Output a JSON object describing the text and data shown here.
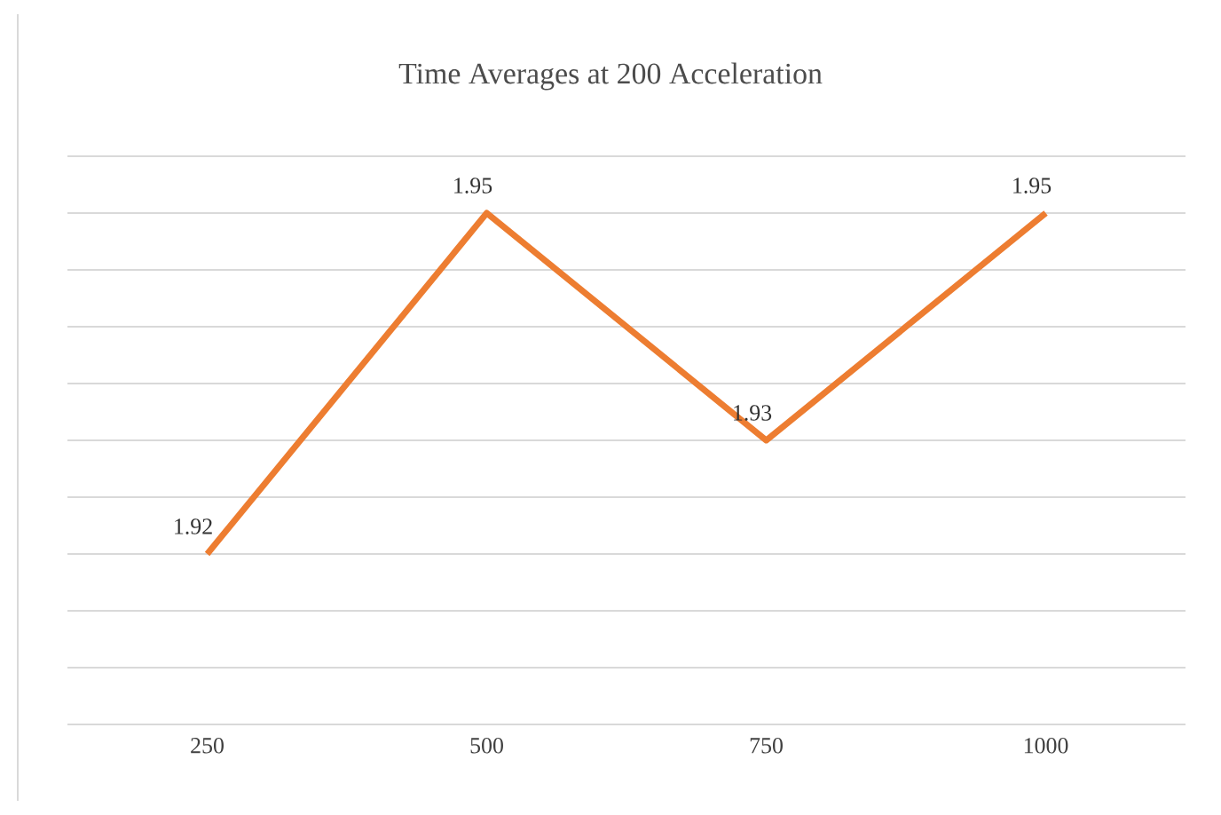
{
  "chart_data": {
    "type": "line",
    "title": "Time Averages at 200 Acceleration",
    "categories": [
      "250",
      "500",
      "750",
      "1000"
    ],
    "values": [
      1.92,
      1.95,
      1.93,
      1.95
    ],
    "color": "#ed7d31",
    "data_labels": true,
    "ylim": [
      1.905,
      1.955
    ],
    "yticks": [
      {
        "value": 1.905,
        "label": null
      },
      {
        "value": 1.91,
        "label": null
      },
      {
        "value": 1.915,
        "label": null
      },
      {
        "value": 1.92,
        "label": null
      },
      {
        "value": 1.925,
        "label": null
      },
      {
        "value": 1.93,
        "label": null
      },
      {
        "value": 1.935,
        "label": null
      },
      {
        "value": 1.94,
        "label": null
      },
      {
        "value": 1.945,
        "label": null
      },
      {
        "value": 1.95,
        "label": null
      },
      {
        "value": 1.955,
        "label": null
      }
    ],
    "grid": "y",
    "tick_labels": "x",
    "marker": "none",
    "line_style": "solid"
  }
}
